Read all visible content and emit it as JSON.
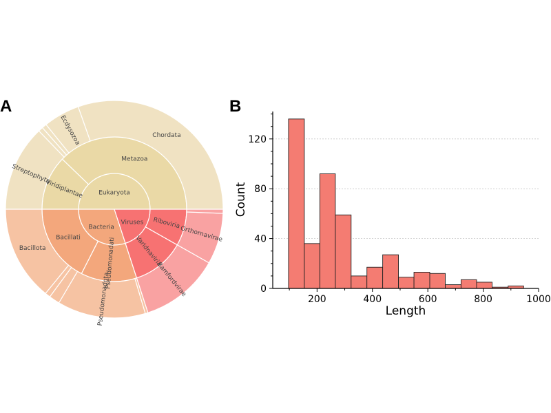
{
  "panels": {
    "a": "A",
    "b": "B"
  },
  "sunburst": {
    "root": {
      "name": "Eukaryota",
      "share": 0.5,
      "color": "#ead9a6"
    },
    "nodes": [
      {
        "name": "Eukaryota",
        "ring": 0,
        "start": 0.0,
        "end": 0.5,
        "color": "#ead9a6",
        "show_label": true
      },
      {
        "name": "Bacteria",
        "ring": 0,
        "start": 0.5,
        "end": 0.8,
        "color": "#f3a77c",
        "show_label": true
      },
      {
        "name": "Viruses",
        "ring": 0,
        "start": 0.8,
        "end": 1.0,
        "color": "#f77272",
        "show_label": true
      },
      {
        "name": "Metazoa",
        "ring": 1,
        "start": 0.0,
        "end": 0.378,
        "color": "#ead9a6",
        "show_label": true
      },
      {
        "name": "Viridiplantae",
        "ring": 1,
        "start": 0.378,
        "end": 0.5,
        "color": "#ead9a6",
        "show_label": true
      },
      {
        "name": "Bacillati",
        "ring": 1,
        "start": 0.5,
        "end": 0.675,
        "color": "#f3a77c",
        "show_label": true
      },
      {
        "name": "Pseudomonadati",
        "ring": 1,
        "start": 0.675,
        "end": 0.8,
        "color": "#f3a77c",
        "show_label": true
      },
      {
        "name": "Varidnaviria",
        "ring": 1,
        "start": 0.8,
        "end": 0.918,
        "color": "#f77272",
        "show_label": true
      },
      {
        "name": "Riboviria",
        "ring": 1,
        "start": 0.918,
        "end": 1.0,
        "color": "#f77272",
        "show_label": true
      },
      {
        "name": "Chordata",
        "ring": 2,
        "start": 0.0,
        "end": 0.304,
        "color": "#f0e2c2",
        "show_label": true
      },
      {
        "name": "Ecdysozoa",
        "ring": 2,
        "start": 0.304,
        "end": 0.358,
        "color": "#f0e2c2",
        "show_label": true
      },
      {
        "name": "",
        "ring": 2,
        "start": 0.358,
        "end": 0.365,
        "color": "#f0e2c2",
        "show_label": false
      },
      {
        "name": "",
        "ring": 2,
        "start": 0.365,
        "end": 0.372,
        "color": "#f0e2c2",
        "show_label": false
      },
      {
        "name": "Streptophyta",
        "ring": 2,
        "start": 0.372,
        "end": 0.5,
        "color": "#f0e2c2",
        "show_label": true
      },
      {
        "name": "Bacillota",
        "ring": 2,
        "start": 0.5,
        "end": 0.641,
        "color": "#f6c3a3",
        "show_label": true
      },
      {
        "name": "",
        "ring": 2,
        "start": 0.641,
        "end": 0.649,
        "color": "#f6c3a3",
        "show_label": false
      },
      {
        "name": "",
        "ring": 2,
        "start": 0.649,
        "end": 0.665,
        "color": "#f6c3a3",
        "show_label": false
      },
      {
        "name": "Pseudomonadota",
        "ring": 2,
        "start": 0.665,
        "end": 0.796,
        "color": "#f6c3a3",
        "show_label": true
      },
      {
        "name": "",
        "ring": 2,
        "start": 0.796,
        "end": 0.8,
        "color": "#f6c3a3",
        "show_label": false
      },
      {
        "name": "Bamfordvirae",
        "ring": 2,
        "start": 0.8,
        "end": 0.918,
        "color": "#f9a2a2",
        "show_label": true
      },
      {
        "name": "Orthornavirae",
        "ring": 2,
        "start": 0.918,
        "end": 0.994,
        "color": "#f9a2a2",
        "show_label": true
      },
      {
        "name": "",
        "ring": 2,
        "start": 0.994,
        "end": 1.0,
        "color": "#f9a2a2",
        "show_label": false
      }
    ]
  },
  "chart_data": {
    "type": "bar",
    "subtype": "histogram",
    "xlabel": "Length",
    "ylabel": "Count",
    "xlim": [
      40,
      1000
    ],
    "ylim": [
      0,
      142
    ],
    "xticks": [
      200,
      400,
      600,
      800,
      1000
    ],
    "yticks": [
      0,
      40,
      80,
      120
    ],
    "grid": "horizontal dotted",
    "bar_color": "#f47c72",
    "edge_color": "#222222",
    "bin_edges": [
      97,
      154,
      210,
      266,
      323,
      380,
      437,
      494,
      550,
      607,
      663,
      720,
      776,
      832,
      890,
      946
    ],
    "values": [
      136,
      36,
      92,
      59,
      10,
      17,
      27,
      9,
      13,
      12,
      3,
      7,
      5,
      1,
      2
    ]
  }
}
